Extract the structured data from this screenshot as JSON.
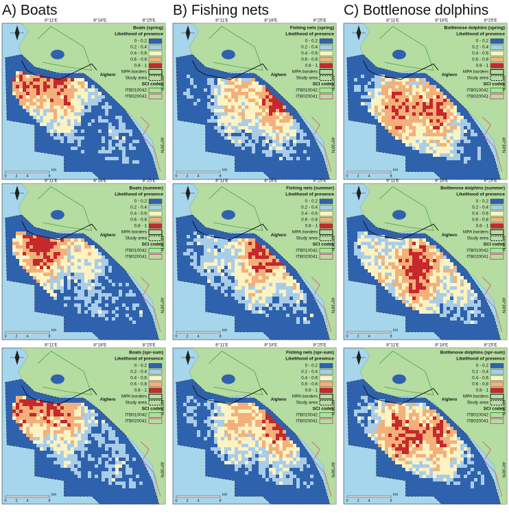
{
  "columns": [
    {
      "title": "A) Boats"
    },
    {
      "title": "B) Fishing nets"
    },
    {
      "title": "C) Bottlenose dolphins"
    }
  ],
  "panels": [
    {
      "title": "Boats (spring)"
    },
    {
      "title": "Fishing nets (spring)"
    },
    {
      "title": "Bottlenose dolphins (spring)"
    },
    {
      "title": "Boats (summer)"
    },
    {
      "title": "Fishing nets (summer)"
    },
    {
      "title": "Bottlenose dolphins (summer)"
    },
    {
      "title": "Boats (spr-sum)"
    },
    {
      "title": "Fishing nets (spr-sum)"
    },
    {
      "title": "Bottlenose dolphins (spr-sum)"
    }
  ],
  "legend": {
    "heading": "Likelihood of presence",
    "classes": [
      "0 - 0.2",
      "0.2 - 0.4",
      "0.4 - 0.6",
      "0.6 - 0.8",
      "0.8 - 1"
    ],
    "colors": [
      "#2f62ad",
      "#a9cde9",
      "#fcf3c2",
      "#f3b07a",
      "#c6282b"
    ],
    "mpa": "MPA borders",
    "study": "Study area",
    "sci_heading": "SCI codes",
    "sci": [
      "ITB010042",
      "ITB020041"
    ]
  },
  "x_labels": [
    "8°11'E",
    "8°18'E",
    "8°25'E"
  ],
  "y_labels": [
    "40°36'N",
    "40°30'N"
  ],
  "scale": [
    "0",
    "2",
    "4",
    "8"
  ],
  "scale_unit": "km",
  "place": "Alghero"
}
